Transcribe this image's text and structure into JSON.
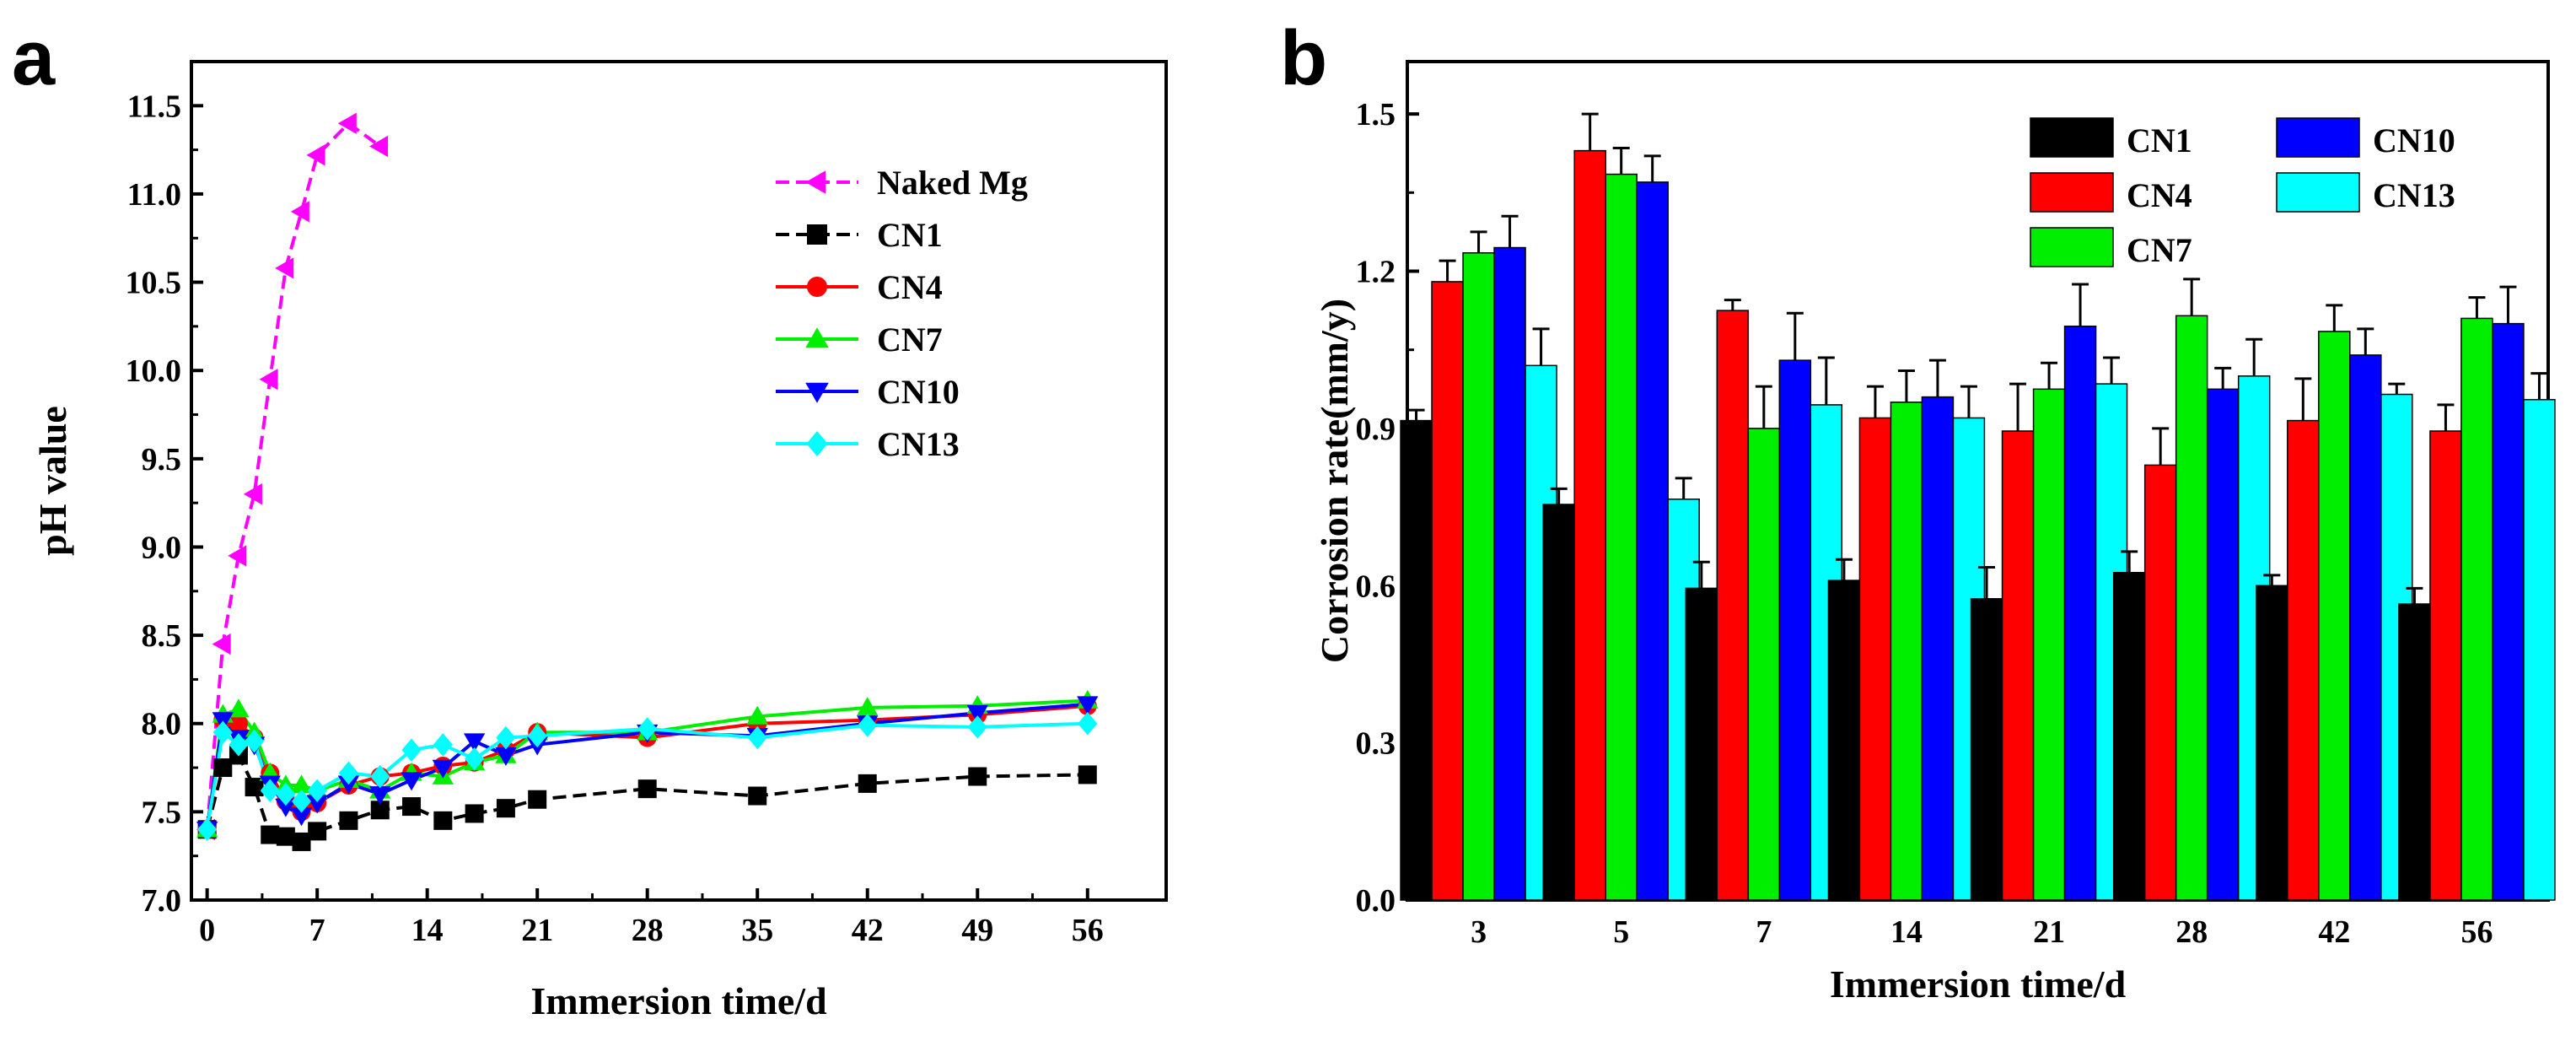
{
  "chart_data": [
    {
      "panel": "a",
      "type": "line",
      "xlabel": "Immersion time/d",
      "ylabel": "pH value",
      "xlim": [
        -1,
        61
      ],
      "ylim": [
        7.0,
        11.75
      ],
      "xticks": [
        0,
        7,
        14,
        21,
        28,
        35,
        42,
        49,
        56
      ],
      "yticks": [
        "7.0",
        "7.5",
        "8.0",
        "8.5",
        "9.0",
        "9.5",
        "10.0",
        "10.5",
        "11.0",
        "11.5"
      ],
      "grid": false,
      "legend_position": "top-right",
      "series": [
        {
          "name": "Naked Mg",
          "color": "#ff00ff",
          "marker": "triangle-left",
          "dashed": true,
          "x": [
            0,
            1,
            2,
            3,
            4,
            5,
            6,
            7,
            9,
            11
          ],
          "y": [
            7.4,
            8.45,
            8.95,
            9.3,
            9.95,
            10.58,
            10.9,
            11.22,
            11.4,
            11.27
          ]
        },
        {
          "name": "CN1",
          "color": "#000000",
          "marker": "square",
          "dashed": true,
          "x": [
            0,
            1,
            2,
            3,
            4,
            5,
            6,
            7,
            9,
            11,
            13,
            15,
            17,
            19,
            21,
            28,
            35,
            42,
            49,
            56
          ],
          "y": [
            7.4,
            7.75,
            7.82,
            7.64,
            7.37,
            7.36,
            7.33,
            7.39,
            7.45,
            7.51,
            7.53,
            7.45,
            7.49,
            7.52,
            7.57,
            7.63,
            7.59,
            7.66,
            7.7,
            7.71
          ]
        },
        {
          "name": "CN4",
          "color": "#ff0000",
          "marker": "circle",
          "dashed": false,
          "x": [
            0,
            1,
            2,
            3,
            4,
            5,
            6,
            7,
            9,
            11,
            13,
            15,
            17,
            19,
            21,
            28,
            35,
            42,
            49,
            56
          ],
          "y": [
            7.4,
            8.02,
            8.0,
            7.92,
            7.72,
            7.56,
            7.5,
            7.55,
            7.65,
            7.7,
            7.72,
            7.76,
            7.78,
            7.85,
            7.95,
            7.92,
            8.0,
            8.02,
            8.05,
            8.1
          ]
        },
        {
          "name": "CN7",
          "color": "#00ee00",
          "marker": "triangle-up",
          "dashed": false,
          "x": [
            0,
            1,
            2,
            3,
            4,
            5,
            6,
            7,
            9,
            11,
            13,
            15,
            17,
            19,
            21,
            28,
            35,
            42,
            49,
            56
          ],
          "y": [
            7.4,
            8.05,
            8.08,
            7.95,
            7.72,
            7.65,
            7.65,
            7.62,
            7.68,
            7.62,
            7.72,
            7.7,
            7.78,
            7.82,
            7.95,
            7.95,
            8.04,
            8.09,
            8.1,
            8.13
          ]
        },
        {
          "name": "CN10",
          "color": "#0000ff",
          "marker": "triangle-down",
          "dashed": false,
          "x": [
            0,
            1,
            2,
            3,
            4,
            5,
            6,
            7,
            9,
            11,
            13,
            15,
            17,
            19,
            21,
            28,
            35,
            42,
            49,
            56
          ],
          "y": [
            7.4,
            8.02,
            7.92,
            7.88,
            7.66,
            7.53,
            7.48,
            7.55,
            7.66,
            7.6,
            7.68,
            7.75,
            7.9,
            7.82,
            7.88,
            7.95,
            7.93,
            8.0,
            8.06,
            8.11
          ]
        },
        {
          "name": "CN13",
          "color": "#00ffff",
          "marker": "diamond",
          "dashed": false,
          "x": [
            0,
            1,
            2,
            3,
            4,
            5,
            6,
            7,
            9,
            11,
            13,
            15,
            17,
            19,
            21,
            28,
            35,
            42,
            49,
            56
          ],
          "y": [
            7.4,
            7.95,
            7.88,
            7.9,
            7.62,
            7.6,
            7.56,
            7.62,
            7.72,
            7.7,
            7.85,
            7.88,
            7.8,
            7.92,
            7.93,
            7.97,
            7.92,
            7.99,
            7.98,
            8.0
          ]
        }
      ]
    },
    {
      "panel": "b",
      "type": "bar",
      "xlabel": "Immersion time/d",
      "ylabel": "Corrosion rate(mm/y)",
      "ylim": [
        0.0,
        1.6
      ],
      "yticks": [
        "0.0",
        "0.3",
        "0.6",
        "0.9",
        "1.2",
        "1.5"
      ],
      "categories": [
        "3",
        "5",
        "7",
        "14",
        "21",
        "28",
        "42",
        "56"
      ],
      "grid": false,
      "legend_position": "top-right",
      "series": [
        {
          "name": "CN1",
          "color": "#000000",
          "values": [
            0.915,
            0.755,
            0.595,
            0.61,
            0.575,
            0.625,
            0.6,
            0.565
          ],
          "errors": [
            0.02,
            0.03,
            0.05,
            0.04,
            0.06,
            0.04,
            0.02,
            0.03
          ]
        },
        {
          "name": "CN4",
          "color": "#ff0000",
          "values": [
            1.18,
            1.43,
            1.125,
            0.92,
            0.895,
            0.83,
            0.915,
            0.895
          ],
          "errors": [
            0.04,
            0.07,
            0.02,
            0.06,
            0.09,
            0.07,
            0.08,
            0.05
          ]
        },
        {
          "name": "CN7",
          "color": "#00ee00",
          "values": [
            1.235,
            1.385,
            0.9,
            0.95,
            0.975,
            1.115,
            1.085,
            1.11
          ],
          "errors": [
            0.04,
            0.05,
            0.08,
            0.06,
            0.05,
            0.07,
            0.05,
            0.04
          ]
        },
        {
          "name": "CN10",
          "color": "#0000ff",
          "values": [
            1.245,
            1.37,
            1.03,
            0.96,
            1.095,
            0.975,
            1.04,
            1.1
          ],
          "errors": [
            0.06,
            0.05,
            0.09,
            0.07,
            0.08,
            0.04,
            0.05,
            0.07
          ]
        },
        {
          "name": "CN13",
          "color": "#00ffff",
          "values": [
            1.02,
            0.765,
            0.945,
            0.92,
            0.985,
            1.0,
            0.965,
            0.955
          ],
          "errors": [
            0.07,
            0.04,
            0.09,
            0.06,
            0.05,
            0.07,
            0.02,
            0.05
          ]
        }
      ]
    }
  ],
  "panels": {
    "a": {
      "letter": "a"
    },
    "b": {
      "letter": "b"
    }
  }
}
